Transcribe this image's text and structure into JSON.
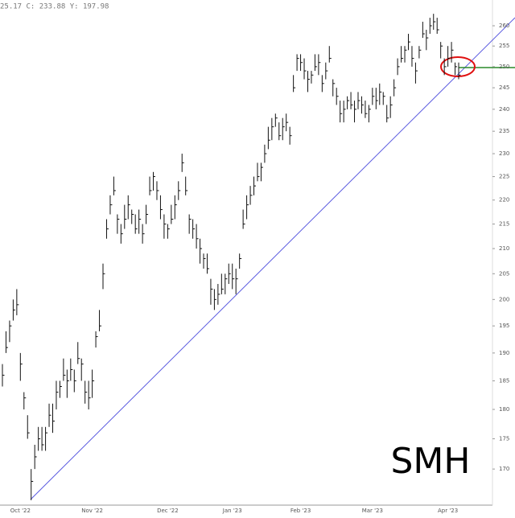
{
  "chart_data": {
    "type": "ohlc",
    "title": "SMH",
    "info": "25.17 C: 233.88 Y: 197.98",
    "log_scale": true,
    "grid": false,
    "color": "#111111",
    "ylim": [
      164.6,
      266.5
    ],
    "yticks": [
      170,
      175,
      180,
      185,
      190,
      195,
      200,
      205,
      210,
      215,
      220,
      225,
      230,
      235,
      240,
      245,
      250,
      255,
      260
    ],
    "categories": [
      null,
      null,
      null,
      null,
      null,
      "Oct '22",
      null,
      null,
      null,
      null,
      null,
      null,
      null,
      null,
      null,
      null,
      null,
      null,
      null,
      null,
      null,
      null,
      null,
      null,
      null,
      "Nov '22",
      null,
      null,
      null,
      null,
      null,
      null,
      null,
      null,
      null,
      null,
      null,
      null,
      null,
      null,
      null,
      null,
      null,
      null,
      null,
      null,
      "Dec '22",
      null,
      null,
      null,
      null,
      null,
      null,
      null,
      null,
      null,
      null,
      null,
      null,
      null,
      null,
      null,
      null,
      null,
      "Jan '23",
      null,
      null,
      null,
      null,
      null,
      null,
      null,
      null,
      null,
      null,
      null,
      null,
      null,
      null,
      null,
      null,
      null,
      null,
      "Feb '23",
      null,
      null,
      null,
      null,
      null,
      null,
      null,
      null,
      null,
      null,
      null,
      null,
      null,
      null,
      null,
      null,
      null,
      null,
      null,
      "Mar '23",
      null,
      null,
      null,
      null,
      null,
      null,
      null,
      null,
      null,
      null,
      null,
      null,
      null,
      null,
      null,
      null,
      null,
      null,
      null,
      null,
      "Apr '23",
      null,
      null,
      null
    ],
    "high": [
      188,
      194,
      196,
      200,
      202,
      190,
      183,
      179,
      170,
      174,
      177,
      177,
      177,
      181,
      181,
      185,
      185,
      189,
      187,
      189,
      187,
      192,
      189,
      185,
      185,
      187,
      194,
      198,
      207,
      216,
      221,
      225,
      217,
      215,
      219,
      221,
      218,
      217,
      218,
      215,
      219,
      225,
      226,
      224,
      221,
      217,
      215,
      219,
      221,
      224,
      230,
      225,
      217,
      216,
      215,
      212,
      209,
      209,
      204,
      202,
      203,
      205,
      205,
      207,
      207,
      206,
      209,
      218,
      221,
      223,
      225,
      228,
      228,
      232,
      236,
      238,
      239,
      237,
      238,
      239,
      236,
      248,
      253,
      253,
      252,
      249,
      249,
      253,
      253,
      248,
      251,
      255,
      247,
      245,
      242,
      242,
      243,
      244,
      242,
      244,
      243,
      242,
      241,
      245,
      245,
      246,
      244,
      241,
      243,
      247,
      252,
      255,
      255,
      258,
      255,
      251,
      255,
      261,
      259,
      262,
      263,
      262,
      256,
      252,
      255,
      256,
      251,
      251
    ],
    "low": [
      184,
      190,
      192,
      196,
      197,
      185,
      180,
      175,
      165,
      170,
      173,
      173,
      173,
      177,
      176,
      180,
      182,
      185,
      182,
      185,
      183,
      188,
      185,
      181,
      180,
      182,
      191,
      194,
      202,
      212,
      217,
      221,
      213,
      211,
      214,
      216,
      215,
      213,
      213,
      211,
      215,
      221,
      222,
      220,
      216,
      212,
      212,
      215,
      216,
      220,
      226,
      221,
      213,
      212,
      210,
      207,
      206,
      205,
      199,
      198,
      199,
      201,
      201,
      203,
      202,
      201,
      206,
      214,
      216,
      219,
      221,
      224,
      224,
      228,
      231,
      233,
      236,
      233,
      233,
      235,
      232,
      244,
      249,
      249,
      247,
      244,
      246,
      249,
      248,
      244,
      247,
      251,
      243,
      241,
      237,
      237,
      240,
      240,
      237,
      240,
      239,
      238,
      237,
      241,
      240,
      241,
      241,
      237,
      238,
      243,
      248,
      251,
      251,
      254,
      250,
      246,
      252,
      257,
      254,
      258,
      259,
      258,
      252,
      248,
      250,
      251,
      248,
      247
    ],
    "close": [
      186,
      191,
      195,
      198,
      199,
      188,
      182,
      176,
      168,
      172,
      175,
      174,
      176,
      179,
      178,
      183,
      184,
      186,
      185,
      187,
      185,
      189,
      188,
      183,
      182,
      185,
      193,
      195,
      205,
      214,
      219,
      222,
      216,
      213,
      216,
      219,
      217,
      214,
      216,
      213,
      217,
      222,
      225,
      222,
      218,
      215,
      214,
      216,
      219,
      222,
      228,
      222,
      216,
      214,
      212,
      210,
      208,
      206,
      202,
      200,
      201,
      202,
      204,
      205,
      204,
      204,
      208,
      215,
      219,
      221,
      223,
      225,
      227,
      230,
      233,
      236,
      238,
      234,
      236,
      237,
      234,
      245,
      252,
      251,
      249,
      247,
      248,
      250,
      251,
      246,
      249,
      252,
      246,
      243,
      239,
      240,
      242,
      241,
      240,
      242,
      241,
      239,
      240,
      243,
      242,
      244,
      243,
      238,
      241,
      245,
      250,
      252,
      254,
      256,
      252,
      249,
      254,
      258,
      257,
      260,
      261,
      259,
      255,
      250,
      252,
      254,
      250,
      248
    ]
  }
}
